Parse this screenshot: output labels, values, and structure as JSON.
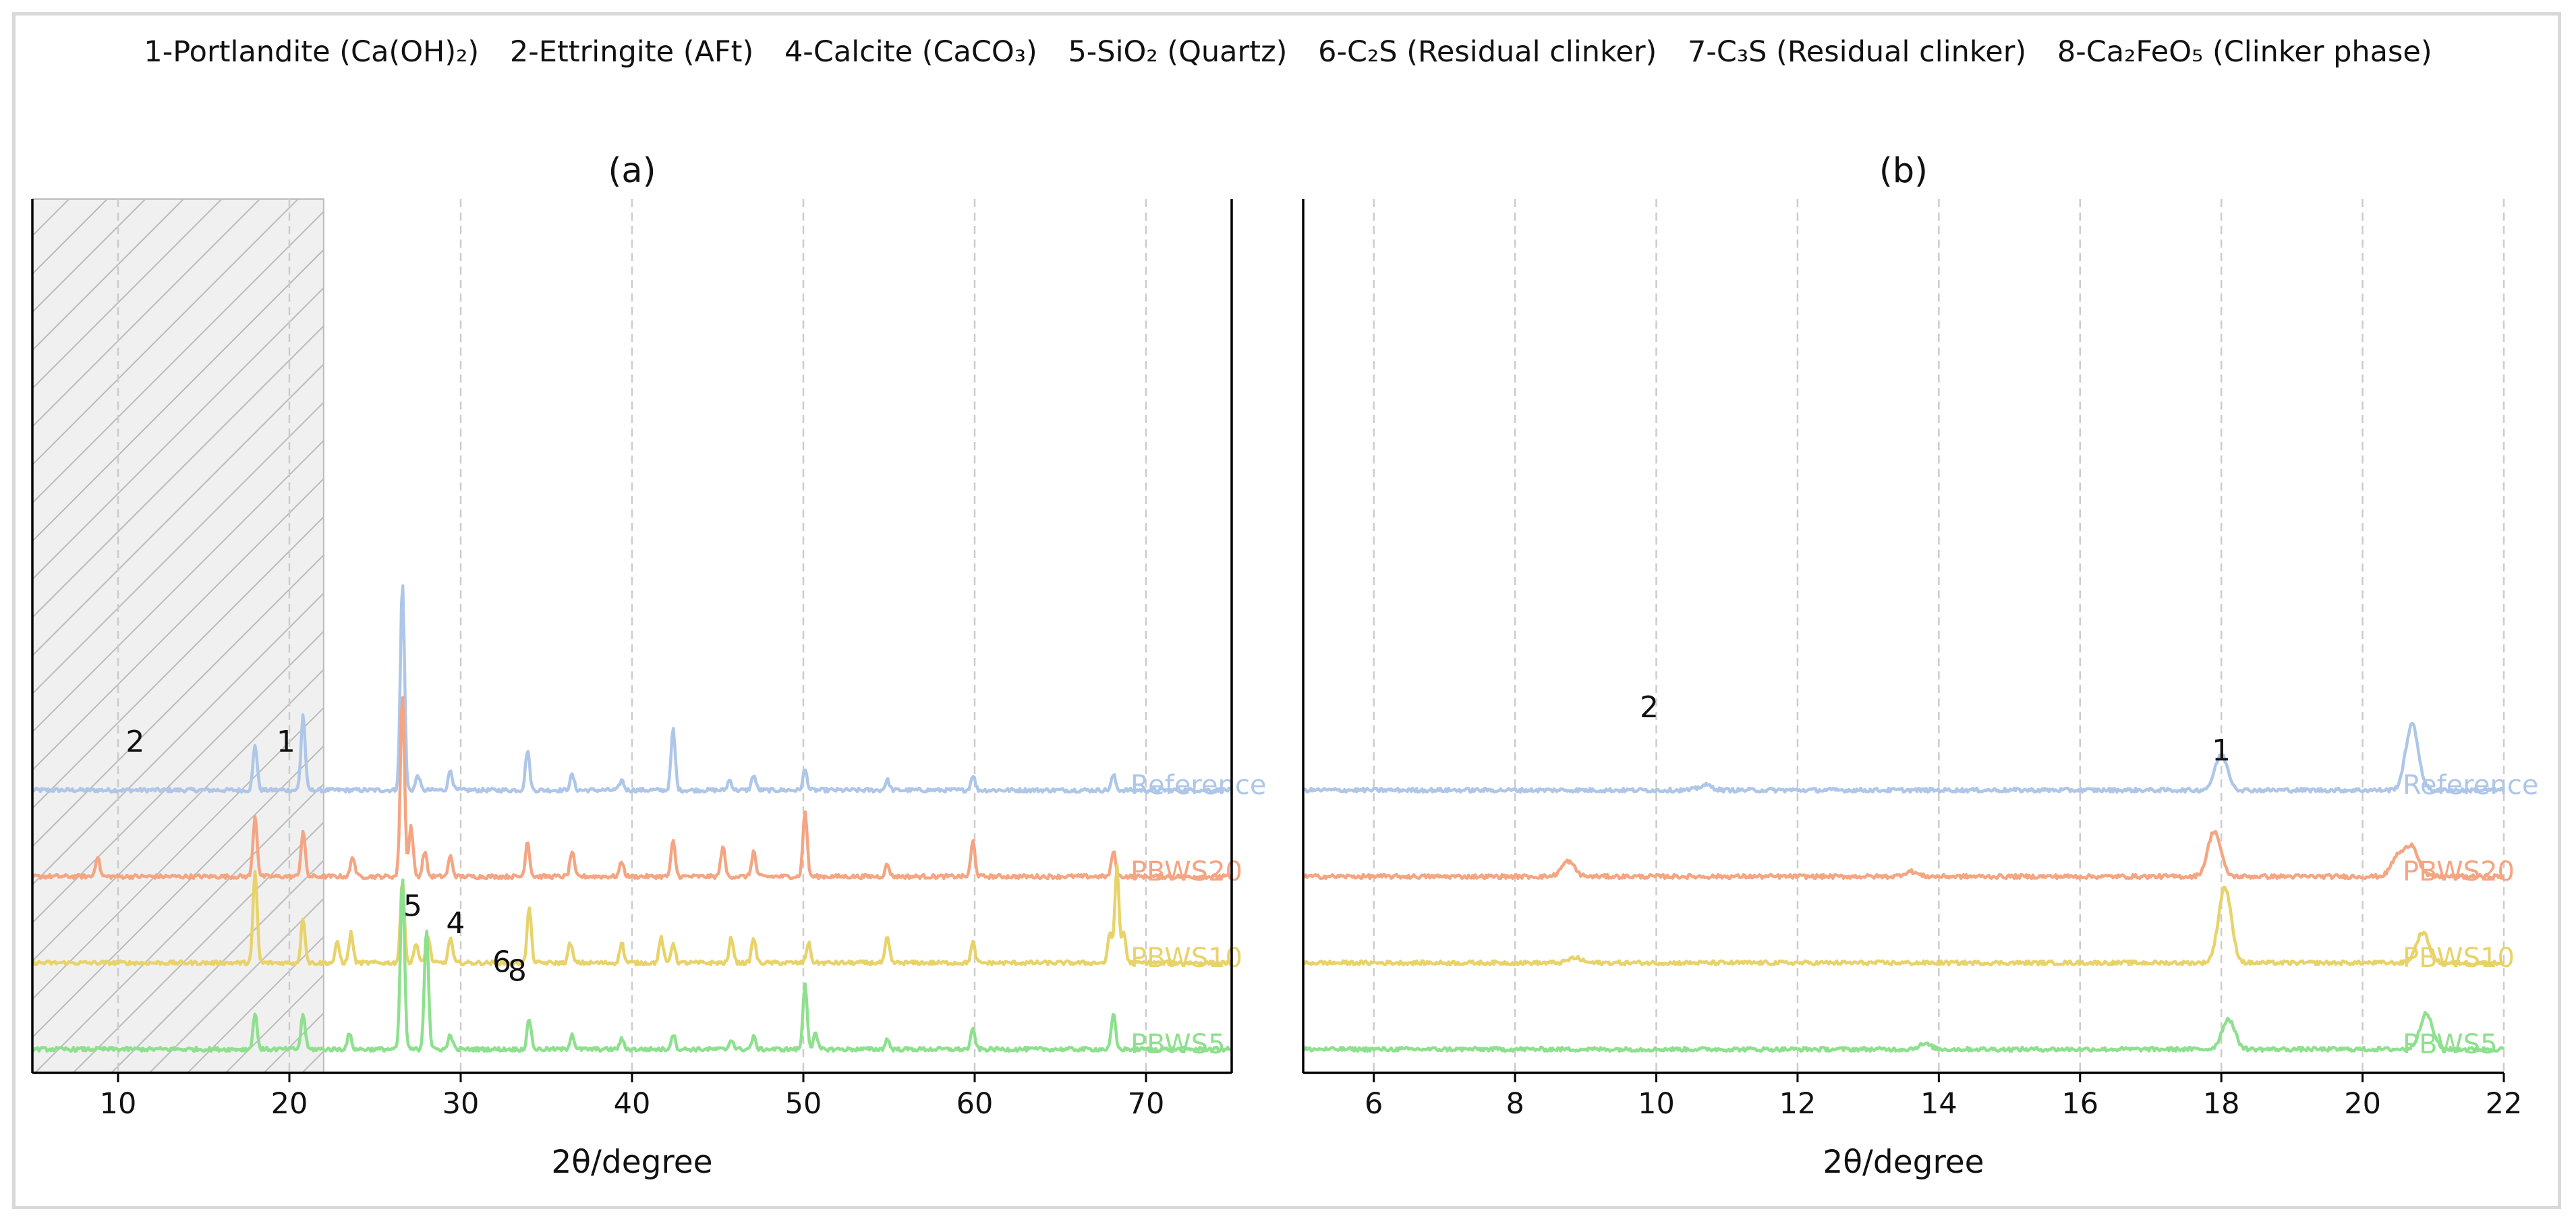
{
  "legend": {
    "items": [
      "1-Portlandite (Ca(OH)₂)",
      "2-Ettringite (AFt)",
      "4-Calcite (CaCO₃)",
      "5-SiO₂ (Quartz)",
      "6-C₂S (Residual clinker)",
      "7-C₃S (Residual clinker)",
      "8-Ca₂FeO₅ (Clinker phase)"
    ]
  },
  "colors": {
    "Reference": "#aec6e8",
    "PBWS20": "#f4a582",
    "PBWS10": "#e8d36a",
    "PBWS5": "#8ee08e",
    "grid": "#cccccc",
    "shade_fill": "#f0f0f0",
    "shade_hatch": "#bbbbbb"
  },
  "chart_data": [
    {
      "type": "line",
      "title": "(a)",
      "xlabel": "2θ/degree",
      "ylabel": "",
      "xlim": [
        5,
        75
      ],
      "xticks": [
        10,
        20,
        30,
        40,
        50,
        60,
        70
      ],
      "grid": "vertical dashed",
      "shaded_region": [
        5,
        22
      ],
      "y_ticks_shown": false,
      "series": [
        {
          "name": "Reference",
          "offset": 3,
          "peaks": [
            [
              18.0,
              0.45
            ],
            [
              20.8,
              0.75
            ],
            [
              26.6,
              2.05
            ],
            [
              27.5,
              0.15
            ],
            [
              29.4,
              0.2
            ],
            [
              33.9,
              0.4
            ],
            [
              36.5,
              0.15
            ],
            [
              39.4,
              0.1
            ],
            [
              42.4,
              0.6
            ],
            [
              45.7,
              0.1
            ],
            [
              47.1,
              0.15
            ],
            [
              50.1,
              0.2
            ],
            [
              54.9,
              0.1
            ],
            [
              59.9,
              0.15
            ],
            [
              68.1,
              0.15
            ]
          ]
        },
        {
          "name": "PBWS20",
          "offset": 2,
          "peaks": [
            [
              8.8,
              0.2
            ],
            [
              18.0,
              0.6
            ],
            [
              20.8,
              0.45
            ],
            [
              23.7,
              0.2
            ],
            [
              26.6,
              1.8
            ],
            [
              27.1,
              0.5
            ],
            [
              27.9,
              0.25
            ],
            [
              29.4,
              0.2
            ],
            [
              33.9,
              0.35
            ],
            [
              36.5,
              0.25
            ],
            [
              39.4,
              0.15
            ],
            [
              42.4,
              0.35
            ],
            [
              45.3,
              0.3
            ],
            [
              47.1,
              0.25
            ],
            [
              50.1,
              0.65
            ],
            [
              54.9,
              0.12
            ],
            [
              59.9,
              0.35
            ],
            [
              68.1,
              0.25
            ]
          ]
        },
        {
          "name": "PBWS10",
          "offset": 1,
          "peaks": [
            [
              18.0,
              0.9
            ],
            [
              20.8,
              0.45
            ],
            [
              22.8,
              0.2
            ],
            [
              23.6,
              0.3
            ],
            [
              26.6,
              0.8
            ],
            [
              27.4,
              0.2
            ],
            [
              28.1,
              0.25
            ],
            [
              29.4,
              0.25
            ],
            [
              34.0,
              0.55
            ],
            [
              36.4,
              0.2
            ],
            [
              39.4,
              0.2
            ],
            [
              41.7,
              0.25
            ],
            [
              42.4,
              0.2
            ],
            [
              45.8,
              0.25
            ],
            [
              47.1,
              0.25
            ],
            [
              50.3,
              0.2
            ],
            [
              54.9,
              0.25
            ],
            [
              59.9,
              0.2
            ],
            [
              67.9,
              0.3
            ],
            [
              68.3,
              0.95
            ],
            [
              68.7,
              0.3
            ]
          ]
        },
        {
          "name": "PBWS5",
          "offset": 0,
          "peaks": [
            [
              18.0,
              0.35
            ],
            [
              20.8,
              0.35
            ],
            [
              23.5,
              0.15
            ],
            [
              26.6,
              1.7
            ],
            [
              28.0,
              1.2
            ],
            [
              29.4,
              0.15
            ],
            [
              34.0,
              0.3
            ],
            [
              36.5,
              0.15
            ],
            [
              39.4,
              0.1
            ],
            [
              42.4,
              0.15
            ],
            [
              45.8,
              0.1
            ],
            [
              47.1,
              0.12
            ],
            [
              50.1,
              0.65
            ],
            [
              50.7,
              0.15
            ],
            [
              54.9,
              0.1
            ],
            [
              59.9,
              0.2
            ],
            [
              68.1,
              0.35
            ]
          ]
        }
      ],
      "annotations": [
        {
          "label": "2",
          "x": 11.0,
          "y": 3.6
        },
        {
          "label": "1",
          "x": 19.8,
          "y": 3.6
        },
        {
          "label": "5",
          "x": 27.2,
          "y": 1.7
        },
        {
          "label": "4",
          "x": 29.7,
          "y": 1.5
        },
        {
          "label": "6",
          "x": 32.4,
          "y": 1.05
        },
        {
          "label": "8",
          "x": 33.3,
          "y": 0.95
        }
      ]
    },
    {
      "type": "line",
      "title": "(b)",
      "xlabel": "2θ/degree",
      "ylabel": "",
      "xlim": [
        5,
        22
      ],
      "xticks": [
        6,
        8,
        10,
        12,
        14,
        16,
        18,
        20,
        22
      ],
      "grid": "vertical dashed",
      "y_ticks_shown": false,
      "series": [
        {
          "name": "Reference",
          "offset": 3,
          "peaks": [
            [
              10.7,
              0.05
            ],
            [
              18.0,
              0.35
            ],
            [
              20.7,
              0.65
            ]
          ]
        },
        {
          "name": "PBWS20",
          "offset": 2,
          "peaks": [
            [
              8.75,
              0.15
            ],
            [
              13.6,
              0.05
            ],
            [
              17.9,
              0.45
            ],
            [
              20.5,
              0.2
            ],
            [
              20.7,
              0.3
            ]
          ]
        },
        {
          "name": "PBWS10",
          "offset": 1,
          "peaks": [
            [
              8.85,
              0.05
            ],
            [
              18.05,
              0.75
            ],
            [
              20.85,
              0.3
            ]
          ]
        },
        {
          "name": "PBWS5",
          "offset": 0,
          "peaks": [
            [
              13.8,
              0.05
            ],
            [
              18.1,
              0.3
            ],
            [
              20.9,
              0.35
            ]
          ]
        }
      ],
      "annotations": [
        {
          "label": "2",
          "x": 9.9,
          "y": 4.0
        },
        {
          "label": "1",
          "x": 18.0,
          "y": 3.5
        }
      ]
    }
  ]
}
